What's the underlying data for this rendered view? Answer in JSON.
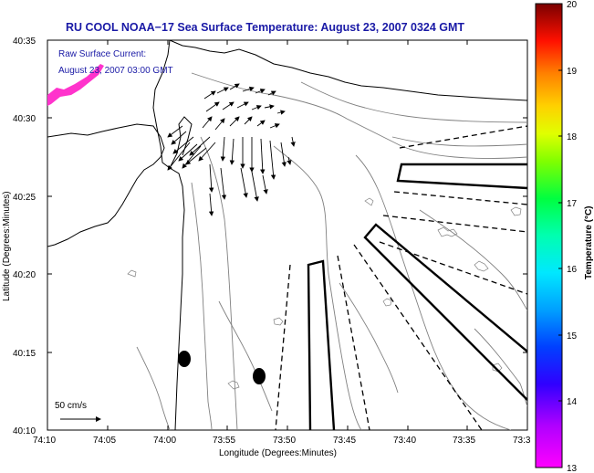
{
  "title": "RU COOL  NOAA−17  Sea Surface Temperature:  August 23, 2007 0324 GMT",
  "annotation": {
    "line1": "Raw Surface Current:",
    "line2": "August 23, 2007 03:00 GMT"
  },
  "axes": {
    "xlabel": "Longitude (Degrees:Minutes)",
    "ylabel": "Latitude (Degrees:Minutes)",
    "xticks": [
      "74:10",
      "74:05",
      "74:00",
      "73:55",
      "73:50",
      "73:45",
      "73:40",
      "73:35",
      "73:3"
    ],
    "yticks": [
      "40:35",
      "40:30",
      "40:25",
      "40:20",
      "40:15",
      "40:10"
    ]
  },
  "scale_bar": {
    "label": "50 cm/s"
  },
  "colorbar": {
    "label": "Temperature (°C)",
    "ticks": [
      "20",
      "19",
      "18",
      "17",
      "16",
      "15",
      "14",
      "13"
    ],
    "min": 13,
    "max": 20,
    "colors": [
      "#ff00ff",
      "#7a00ff",
      "#0000ff",
      "#00b4ff",
      "#00ffcc",
      "#00ff40",
      "#b4ff00",
      "#ffff00",
      "#ffb400",
      "#ff5000",
      "#ff0000",
      "#8b0000"
    ]
  },
  "colors": {
    "title": "#1a1aa6",
    "warm_patch": "#ff33cc"
  },
  "icons": {
    "current_vector": "arrow-icon",
    "dropped_buoy": "marker-icon"
  }
}
